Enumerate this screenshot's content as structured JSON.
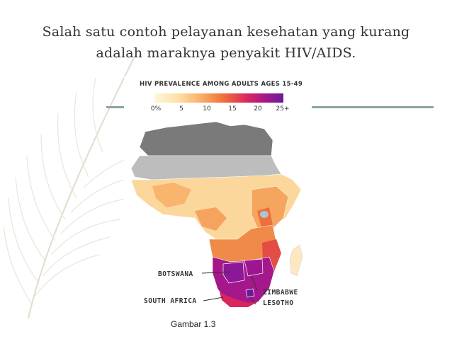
{
  "slide": {
    "title": "Salah satu contoh pelayanan kesehatan yang kurang adalah maraknya penyakit HIV/AIDS.",
    "caption": "Gambar 1.3"
  },
  "map": {
    "legend_title": "HIV PREVALENCE AMONG ADULTS AGES 15-49",
    "legend_ticks": [
      "0%",
      "5",
      "10",
      "15",
      "20",
      "25+"
    ],
    "color_scale": [
      "#fff6de",
      "#fde0a6",
      "#f8b069",
      "#ef6f3a",
      "#d9265d",
      "#a5188c",
      "#6b1a9c"
    ],
    "no_data_colors": [
      "#7a7a7a",
      "#bdbdbd"
    ],
    "labels": {
      "botswana": "BOTSWANA",
      "south_africa": "SOUTH AFRICA",
      "zimbabwe": "ZIMBABWE",
      "lesotho": "LESOTHO"
    }
  },
  "decor": {
    "accent_color": "#89a79f",
    "feather_color": "#e3dccd"
  }
}
